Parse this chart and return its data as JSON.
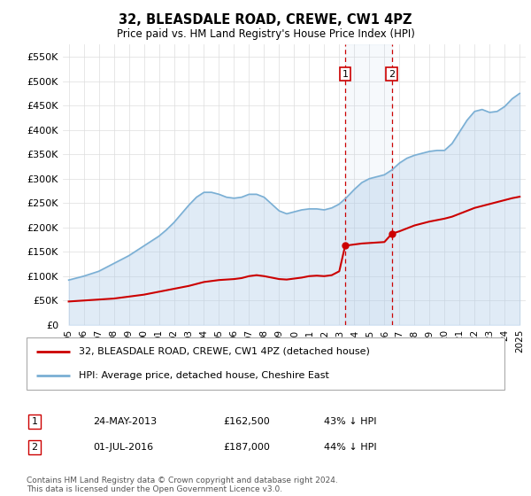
{
  "title": "32, BLEASDALE ROAD, CREWE, CW1 4PZ",
  "subtitle": "Price paid vs. HM Land Registry's House Price Index (HPI)",
  "legend_line1": "32, BLEASDALE ROAD, CREWE, CW1 4PZ (detached house)",
  "legend_line2": "HPI: Average price, detached house, Cheshire East",
  "annotation1_label": "1",
  "annotation1_date": "24-MAY-2013",
  "annotation1_price": "£162,500",
  "annotation1_hpi": "43% ↓ HPI",
  "annotation2_label": "2",
  "annotation2_date": "01-JUL-2016",
  "annotation2_price": "£187,000",
  "annotation2_hpi": "44% ↓ HPI",
  "footer": "Contains HM Land Registry data © Crown copyright and database right 2024.\nThis data is licensed under the Open Government Licence v3.0.",
  "hpi_color": "#a8c8e8",
  "hpi_line_color": "#7aafd4",
  "price_color": "#cc0000",
  "ylim_bottom": 0,
  "ylim_top": 575000,
  "yticks": [
    0,
    50000,
    100000,
    150000,
    200000,
    250000,
    300000,
    350000,
    400000,
    450000,
    500000,
    550000
  ],
  "ytick_labels": [
    "£0",
    "£50K",
    "£100K",
    "£150K",
    "£200K",
    "£250K",
    "£300K",
    "£350K",
    "£400K",
    "£450K",
    "£500K",
    "£550K"
  ],
  "hpi_years": [
    1995.0,
    1995.5,
    1996.0,
    1996.5,
    1997.0,
    1997.5,
    1998.0,
    1998.5,
    1999.0,
    1999.5,
    2000.0,
    2000.5,
    2001.0,
    2001.5,
    2002.0,
    2002.5,
    2003.0,
    2003.5,
    2004.0,
    2004.5,
    2005.0,
    2005.5,
    2006.0,
    2006.5,
    2007.0,
    2007.5,
    2008.0,
    2008.5,
    2009.0,
    2009.5,
    2010.0,
    2010.5,
    2011.0,
    2011.5,
    2012.0,
    2012.5,
    2013.0,
    2013.5,
    2014.0,
    2014.5,
    2015.0,
    2015.5,
    2016.0,
    2016.5,
    2017.0,
    2017.5,
    2018.0,
    2018.5,
    2019.0,
    2019.5,
    2020.0,
    2020.5,
    2021.0,
    2021.5,
    2022.0,
    2022.5,
    2023.0,
    2023.5,
    2024.0,
    2024.5,
    2025.0
  ],
  "hpi_values": [
    92000,
    96000,
    100000,
    105000,
    110000,
    118000,
    126000,
    134000,
    142000,
    152000,
    162000,
    172000,
    182000,
    195000,
    210000,
    228000,
    246000,
    262000,
    272000,
    272000,
    268000,
    262000,
    260000,
    262000,
    268000,
    268000,
    262000,
    248000,
    234000,
    228000,
    232000,
    236000,
    238000,
    238000,
    236000,
    240000,
    248000,
    262000,
    278000,
    292000,
    300000,
    304000,
    308000,
    318000,
    332000,
    342000,
    348000,
    352000,
    356000,
    358000,
    358000,
    372000,
    396000,
    420000,
    438000,
    442000,
    436000,
    438000,
    448000,
    464000,
    475000
  ],
  "hpi_fill_alpha": 0.35,
  "sale1_x": 2013.39,
  "sale1_y": 162500,
  "sale2_x": 2016.5,
  "sale2_y": 187000,
  "price_years": [
    1995.0,
    1995.5,
    1996.0,
    1996.5,
    1997.0,
    1997.5,
    1998.0,
    1998.5,
    1999.0,
    1999.5,
    2000.0,
    2000.5,
    2001.0,
    2001.5,
    2002.0,
    2002.5,
    2003.0,
    2003.5,
    2004.0,
    2004.5,
    2005.0,
    2005.5,
    2006.0,
    2006.5,
    2007.0,
    2007.5,
    2008.0,
    2008.5,
    2009.0,
    2009.5,
    2010.0,
    2010.5,
    2011.0,
    2011.5,
    2012.0,
    2012.5,
    2013.0,
    2013.39,
    2014.0,
    2014.5,
    2015.0,
    2015.5,
    2016.0,
    2016.5,
    2017.0,
    2017.5,
    2018.0,
    2018.5,
    2019.0,
    2019.5,
    2020.0,
    2020.5,
    2021.0,
    2021.5,
    2022.0,
    2022.5,
    2023.0,
    2023.5,
    2024.0,
    2024.5,
    2025.0
  ],
  "price_values": [
    48000,
    49000,
    50000,
    51000,
    52000,
    53000,
    54000,
    56000,
    58000,
    60000,
    62000,
    65000,
    68000,
    71000,
    74000,
    77000,
    80000,
    84000,
    88000,
    90000,
    92000,
    93000,
    94000,
    96000,
    100000,
    102000,
    100000,
    97000,
    94000,
    93000,
    95000,
    97000,
    100000,
    101000,
    100000,
    102000,
    110000,
    162500,
    165000,
    167000,
    168000,
    169000,
    170000,
    187000,
    192000,
    198000,
    204000,
    208000,
    212000,
    215000,
    218000,
    222000,
    228000,
    234000,
    240000,
    244000,
    248000,
    252000,
    256000,
    260000,
    263000
  ],
  "xtick_years": [
    1995,
    1996,
    1997,
    1998,
    1999,
    2000,
    2001,
    2002,
    2003,
    2004,
    2005,
    2006,
    2007,
    2008,
    2009,
    2010,
    2011,
    2012,
    2013,
    2014,
    2015,
    2016,
    2017,
    2018,
    2019,
    2020,
    2021,
    2022,
    2023,
    2024,
    2025
  ],
  "background_color": "#ffffff",
  "grid_color": "#dddddd",
  "border_color": "#aaaaaa"
}
